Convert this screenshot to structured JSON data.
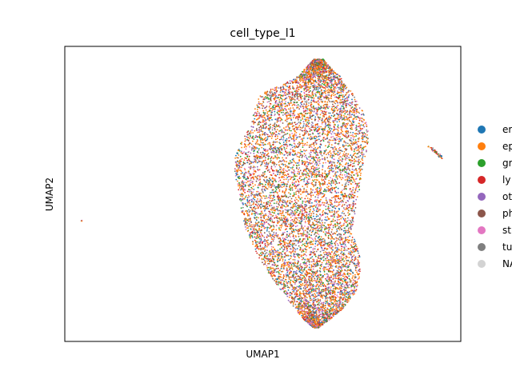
{
  "chart_data": {
    "type": "scatter",
    "title": "cell_type_l1",
    "xlabel": "UMAP1",
    "ylabel": "UMAP2",
    "grid": false,
    "legend_position": "right, outside plot",
    "legend": [
      {
        "label": "er",
        "color": "#1f77b4"
      },
      {
        "label": "ep",
        "color": "#ff7f0e"
      },
      {
        "label": "gr",
        "color": "#2ca02c"
      },
      {
        "label": "ly",
        "color": "#d62728"
      },
      {
        "label": "ot",
        "color": "#9467bd"
      },
      {
        "label": "ph",
        "color": "#8c564b"
      },
      {
        "label": "st",
        "color": "#e377c2"
      },
      {
        "label": "tu",
        "color": "#7f7f7f"
      },
      {
        "label": "NA",
        "color": "#d3d3d3"
      }
    ],
    "point_colors": [
      "#ff7f0e",
      "#ff7f0e",
      "#ff7f0e",
      "#ff7f0e",
      "#1f77b4",
      "#2ca02c",
      "#d62728",
      "#9467bd",
      "#8c564b",
      "#e377c2",
      "#7f7f7f"
    ]
  }
}
